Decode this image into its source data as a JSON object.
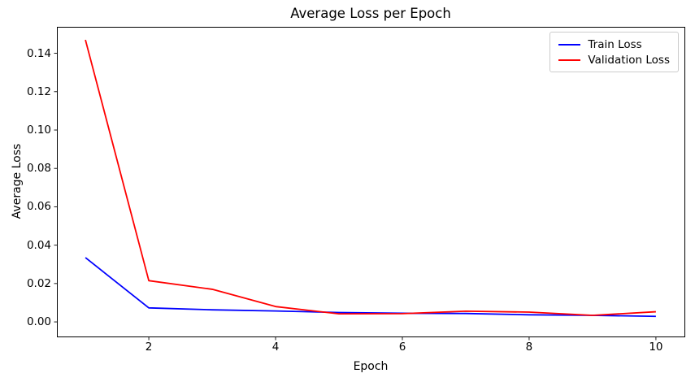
{
  "figure": {
    "background": "#ffffff",
    "text_color": "#000000",
    "spine_color": "#000000",
    "legend_border_color": "#cccccc"
  },
  "chart_data": {
    "type": "line",
    "title": "Average Loss per Epoch",
    "xlabel": "Epoch",
    "ylabel": "Average Loss",
    "x": [
      1,
      2,
      3,
      4,
      5,
      6,
      7,
      8,
      9,
      10
    ],
    "series": [
      {
        "name": "Train Loss",
        "color": "#0000ff",
        "values": [
          0.0335,
          0.0073,
          0.0063,
          0.0057,
          0.0049,
          0.0045,
          0.0044,
          0.0037,
          0.0034,
          0.0029
        ]
      },
      {
        "name": "Validation Loss",
        "color": "#ff0000",
        "values": [
          0.147,
          0.0215,
          0.017,
          0.008,
          0.0042,
          0.0043,
          0.0056,
          0.0051,
          0.0034,
          0.0053
        ]
      }
    ],
    "xlim": [
      0.55,
      10.45
    ],
    "ylim": [
      -0.0076,
      0.1538
    ],
    "xticks": [
      2,
      4,
      6,
      8,
      10
    ],
    "xtick_labels": [
      "2",
      "4",
      "6",
      "8",
      "10"
    ],
    "yticks": [
      0.0,
      0.02,
      0.04,
      0.06,
      0.08,
      0.1,
      0.12,
      0.14
    ],
    "ytick_labels": [
      "0.00",
      "0.02",
      "0.04",
      "0.06",
      "0.08",
      "0.10",
      "0.12",
      "0.14"
    ],
    "grid": false,
    "legend_position": "upper right",
    "line_width": 1.8
  }
}
